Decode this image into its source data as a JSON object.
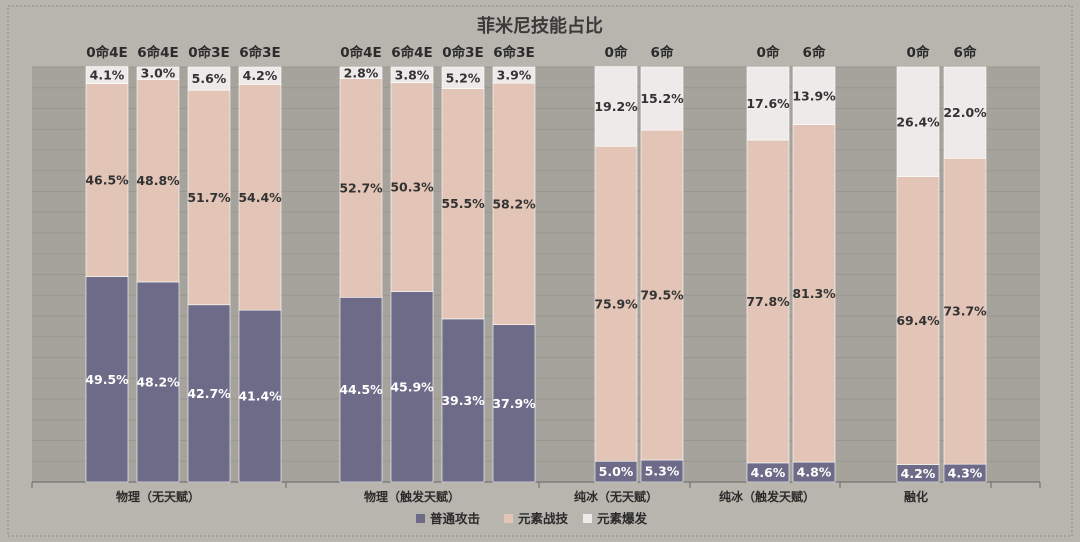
{
  "title": "菲米尼技能占比",
  "colors": {
    "background": "#b7b5ad",
    "panel": "#a6a39c",
    "normal_attack": "#6e6b88",
    "elemental_skill": "#e2c5b7",
    "elemental_burst": "#eeeaea",
    "label_dark_bg": "#ffffff",
    "label_light_bg": "#333333"
  },
  "chart_data": {
    "type": "bar",
    "stacked": true,
    "percent_stacked": true,
    "title": "菲米尼技能占比",
    "ylim": [
      0,
      100
    ],
    "grid": true,
    "legend_position": "bottom",
    "series": [
      {
        "name": "普通攻击",
        "color": "#6e6b88"
      },
      {
        "name": "元素战技",
        "color": "#e2c5b7"
      },
      {
        "name": "元素爆发",
        "color": "#eeeaea"
      }
    ],
    "groups": [
      {
        "label": "物理（无天赋）",
        "bars": [
          {
            "label": "0命4E",
            "values": [
              49.5,
              46.5,
              4.1
            ]
          },
          {
            "label": "6命4E",
            "values": [
              48.2,
              48.8,
              3.0
            ]
          },
          {
            "label": "0命3E",
            "values": [
              42.7,
              51.7,
              5.6
            ]
          },
          {
            "label": "6命3E",
            "values": [
              41.4,
              54.4,
              4.2
            ]
          }
        ]
      },
      {
        "label": "物理（触发天赋）",
        "bars": [
          {
            "label": "0命4E",
            "values": [
              44.5,
              52.7,
              2.8
            ]
          },
          {
            "label": "6命4E",
            "values": [
              45.9,
              50.3,
              3.8
            ]
          },
          {
            "label": "0命3E",
            "values": [
              39.3,
              55.5,
              5.2
            ]
          },
          {
            "label": "6命3E",
            "values": [
              37.9,
              58.2,
              3.9
            ]
          }
        ]
      },
      {
        "label": "纯冰（无天赋）",
        "bars": [
          {
            "label": "0命",
            "values": [
              5.0,
              75.9,
              19.2
            ]
          },
          {
            "label": "6命",
            "values": [
              5.3,
              79.5,
              15.2
            ]
          }
        ]
      },
      {
        "label": "纯冰（触发天赋）",
        "bars": [
          {
            "label": "0命",
            "values": [
              4.6,
              77.8,
              17.6
            ]
          },
          {
            "label": "6命",
            "values": [
              4.8,
              81.3,
              13.9
            ]
          }
        ]
      },
      {
        "label": "融化",
        "bars": [
          {
            "label": "0命",
            "values": [
              4.2,
              69.4,
              26.4
            ]
          },
          {
            "label": "6命",
            "values": [
              4.3,
              73.7,
              22.0
            ]
          }
        ]
      }
    ]
  }
}
